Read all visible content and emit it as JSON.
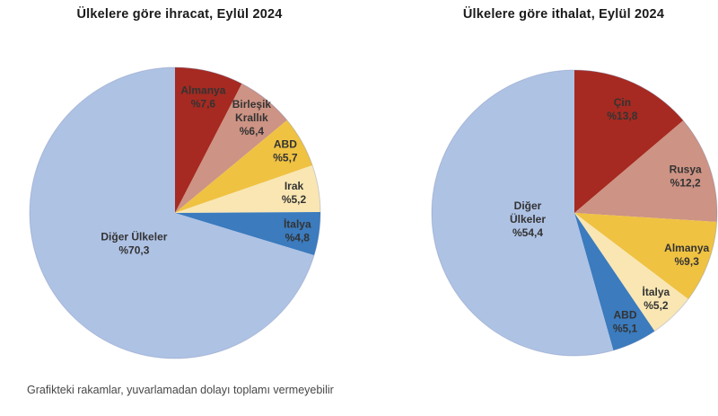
{
  "page": {
    "footnote": "Grafikteki rakamlar, yuvarlamadan dolayı toplamı vermeyebilir"
  },
  "chart_data": [
    {
      "type": "pie",
      "title": "Ülkelere göre ihracat, Eylül 2024",
      "unit": "percent",
      "start_angle_deg": 0,
      "direction": "clockwise",
      "slices": [
        {
          "label": "Almanya",
          "value": 7.6,
          "display": "%7,6",
          "color": "#A62A21",
          "label_lines": [
            "Almanya",
            "%7,6"
          ],
          "label_r": 0.82
        },
        {
          "label": "Birleşik Krallık",
          "value": 6.4,
          "display": "%6,4",
          "color": "#CD9384",
          "label_lines": [
            "Birleşik",
            "Krallık",
            "%6,4"
          ],
          "label_r": 0.84
        },
        {
          "label": "ABD",
          "value": 5.7,
          "display": "%5,7",
          "color": "#EFC242",
          "label_lines": [
            "ABD",
            "%5,7"
          ],
          "label_r": 0.87
        },
        {
          "label": "Irak",
          "value": 5.2,
          "display": "%5,2",
          "color": "#F9E6B3",
          "label_lines": [
            "Irak",
            "%5,2"
          ],
          "label_r": 0.83
        },
        {
          "label": "İtalya",
          "value": 4.8,
          "display": "%4,8",
          "color": "#3B7BBE",
          "label_lines": [
            "İtalya",
            "%4,8"
          ],
          "label_r": 0.85
        },
        {
          "label": "Diğer Ülkeler",
          "value": 70.3,
          "display": "%70,3",
          "color": "#AEC2E4",
          "label_lines": [
            "Diğer Ülkeler",
            "%70,3"
          ],
          "label_r": 0.35
        }
      ]
    },
    {
      "type": "pie",
      "title": "Ülkelere göre ithalat, Eylül 2024",
      "unit": "percent",
      "start_angle_deg": 0,
      "direction": "clockwise",
      "slices": [
        {
          "label": "Çin",
          "value": 13.8,
          "display": "%13,8",
          "color": "#A62A21",
          "label_lines": [
            "Çin",
            "%13,8"
          ],
          "label_r": 0.8
        },
        {
          "label": "Rusya",
          "value": 12.2,
          "display": "%12,2",
          "color": "#CD9384",
          "label_lines": [
            "Rusya",
            "%12,2"
          ],
          "label_r": 0.82
        },
        {
          "label": "Almanya",
          "value": 9.3,
          "display": "%9,3",
          "color": "#EFC242",
          "label_lines": [
            "Almanya",
            "%9,3"
          ],
          "label_r": 0.84
        },
        {
          "label": "İtalya",
          "value": 5.2,
          "display": "%5,2",
          "color": "#F9E6B3",
          "label_lines": [
            "İtalya",
            "%5,2"
          ],
          "label_r": 0.83
        },
        {
          "label": "ABD",
          "value": 5.1,
          "display": "%5,1",
          "color": "#3B7BBE",
          "label_lines": [
            "ABD",
            "%5,1"
          ],
          "label_r": 0.84
        },
        {
          "label": "Diğer Ülkeler",
          "value": 54.4,
          "display": "%54,4",
          "color": "#AEC2E4",
          "label_lines": [
            "Diğer",
            "Ülkeler",
            "%54,4"
          ],
          "label_r": 0.33
        }
      ]
    }
  ]
}
